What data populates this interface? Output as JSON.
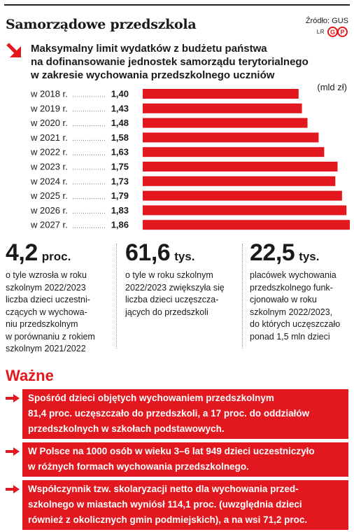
{
  "header": {
    "title": "Samorządowe przedszkola",
    "source": "Źródło: GUS",
    "credit_initials": "LR",
    "publisher_logo": "GP"
  },
  "subtitle_lines": [
    "Maksymalny limit wydatków z budżetu państwa",
    "na dofinansowanie jednostek samorządu terytorialnego",
    "w zakresie wychowania przedszkolnego uczniów"
  ],
  "colors": {
    "accent": "#e3171e",
    "bar": "#e3171e",
    "text": "#1a1a1a"
  },
  "chart_data": {
    "type": "bar",
    "orientation": "horizontal",
    "unit_label": "(mld zł)",
    "categories": [
      "w 2018 r.",
      "w 2019 r.",
      "w 2020 r.",
      "w 2021 r.",
      "w 2022 r.",
      "w 2023 r.",
      "w 2024 r.",
      "w 2025 r.",
      "w 2026 r.",
      "w 2027 r."
    ],
    "values": [
      1.4,
      1.43,
      1.48,
      1.58,
      1.63,
      1.75,
      1.73,
      1.79,
      1.83,
      1.86
    ],
    "value_labels": [
      "1,40",
      "1,43",
      "1,48",
      "1,58",
      "1,63",
      "1,75",
      "1,73",
      "1,79",
      "1,83",
      "1,86"
    ],
    "grid": false,
    "legend": "none"
  },
  "facts": [
    {
      "number": "4,2",
      "suffix": "proc.",
      "lines": [
        "o tyle wzrosła w roku",
        "szkolnym 2022/2023",
        "liczba dzieci uczestni-",
        "czących w wychowa-",
        "niu przedszkolnym",
        "w porównaniu z rokiem",
        "szkolnym 2021/2022"
      ]
    },
    {
      "number": "61,6",
      "suffix": "tys.",
      "lines": [
        "o tyle w roku szkolnym",
        "2022/2023 zwiększyła się",
        "liczba dzieci uczęszcza-",
        "jących do przedszkoli"
      ]
    },
    {
      "number": "22,5",
      "suffix": "tys.",
      "lines": [
        "placówek wychowania",
        "przedszkolnego funk-",
        "cjonowało w roku",
        "szkolnym 2022/2023,",
        "do których uczęszczało",
        "ponad 1,5 mln dzieci"
      ]
    }
  ],
  "wazne": {
    "title": "Ważne",
    "notes": [
      {
        "lines": [
          "Spośród dzieci objętych wychowaniem przedszkolnym",
          "81,4 proc. uczęszczało do przedszkoli, a 17 proc. do oddziałów",
          "przedszkolnych w szkołach podstawowych."
        ]
      },
      {
        "lines": [
          "W Polsce na 1000 osób w wieku 3–6 lat 949 dzieci uczestniczyło",
          "w różnych formach wychowania przedszkolnego."
        ]
      },
      {
        "lines": [
          "Współczynnik tzw. skolaryzacji netto dla wychowania przed-",
          "szkolnego w miastach wyniósł 114,1 proc. (uwzględnia dzieci",
          "również z okolicznych gmin podmiejskich), a na wsi 71,2 proc."
        ]
      }
    ]
  }
}
